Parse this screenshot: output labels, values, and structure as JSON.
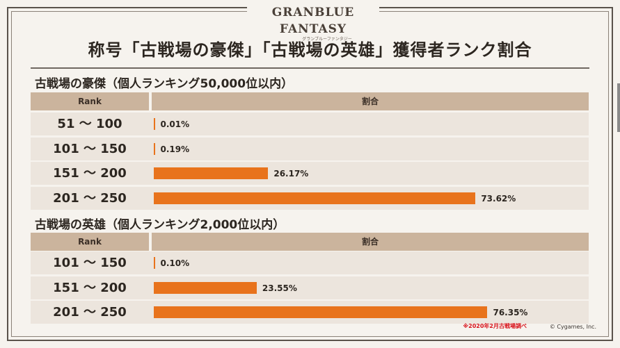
{
  "header": {
    "logo_text": "GRANBLUE FANTASY",
    "logo_subtext": "グランブルーファンタジー",
    "title": "称号「古戦場の豪傑」「古戦場の英雄」獲得者ランク割合"
  },
  "chart_data": [
    {
      "type": "bar",
      "title": "古戦場の豪傑（個人ランキング50,000位以内）",
      "column_headers": [
        "Rank",
        "割合"
      ],
      "categories": [
        "51 ～ 100",
        "101 ～ 150",
        "151 ～ 200",
        "201 ～ 250"
      ],
      "values": [
        0.01,
        0.19,
        26.17,
        73.62
      ],
      "value_labels": [
        "0.01%",
        "0.19%",
        "26.17%",
        "73.62%"
      ],
      "unit": "%",
      "xlim": [
        0,
        100
      ],
      "bar_color": "#e8731c"
    },
    {
      "type": "bar",
      "title": "古戦場の英雄（個人ランキング2,000位以内）",
      "column_headers": [
        "Rank",
        "割合"
      ],
      "categories": [
        "101 ～ 150",
        "151 ～ 200",
        "201 ～ 250"
      ],
      "values": [
        0.1,
        23.55,
        76.35
      ],
      "value_labels": [
        "0.10%",
        "23.55%",
        "76.35%"
      ],
      "unit": "%",
      "xlim": [
        0,
        100
      ],
      "bar_color": "#e8731c"
    }
  ],
  "footer": {
    "note": "※2020年2月古戦場調べ",
    "copyright": "© Cygames, Inc."
  }
}
